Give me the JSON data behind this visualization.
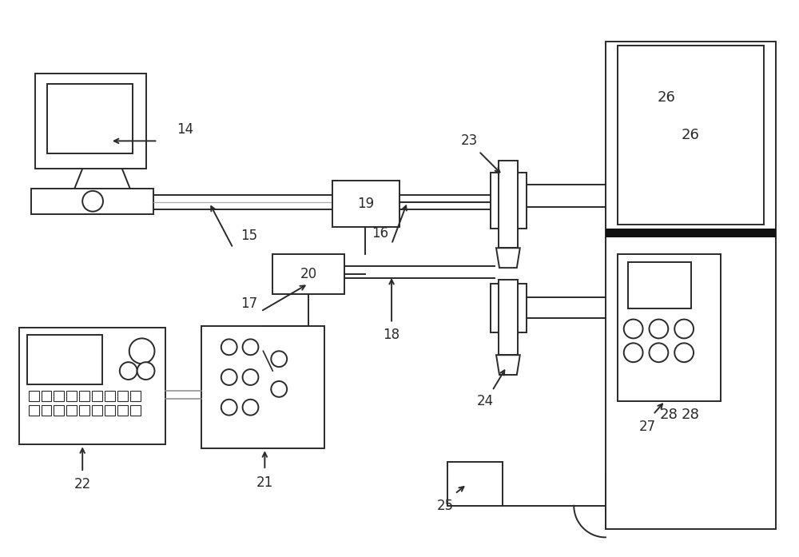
{
  "bg_color": "#ffffff",
  "line_color": "#2a2a2a",
  "lw": 1.4,
  "label_fontsize": 12,
  "figsize": [
    10.0,
    6.97
  ]
}
